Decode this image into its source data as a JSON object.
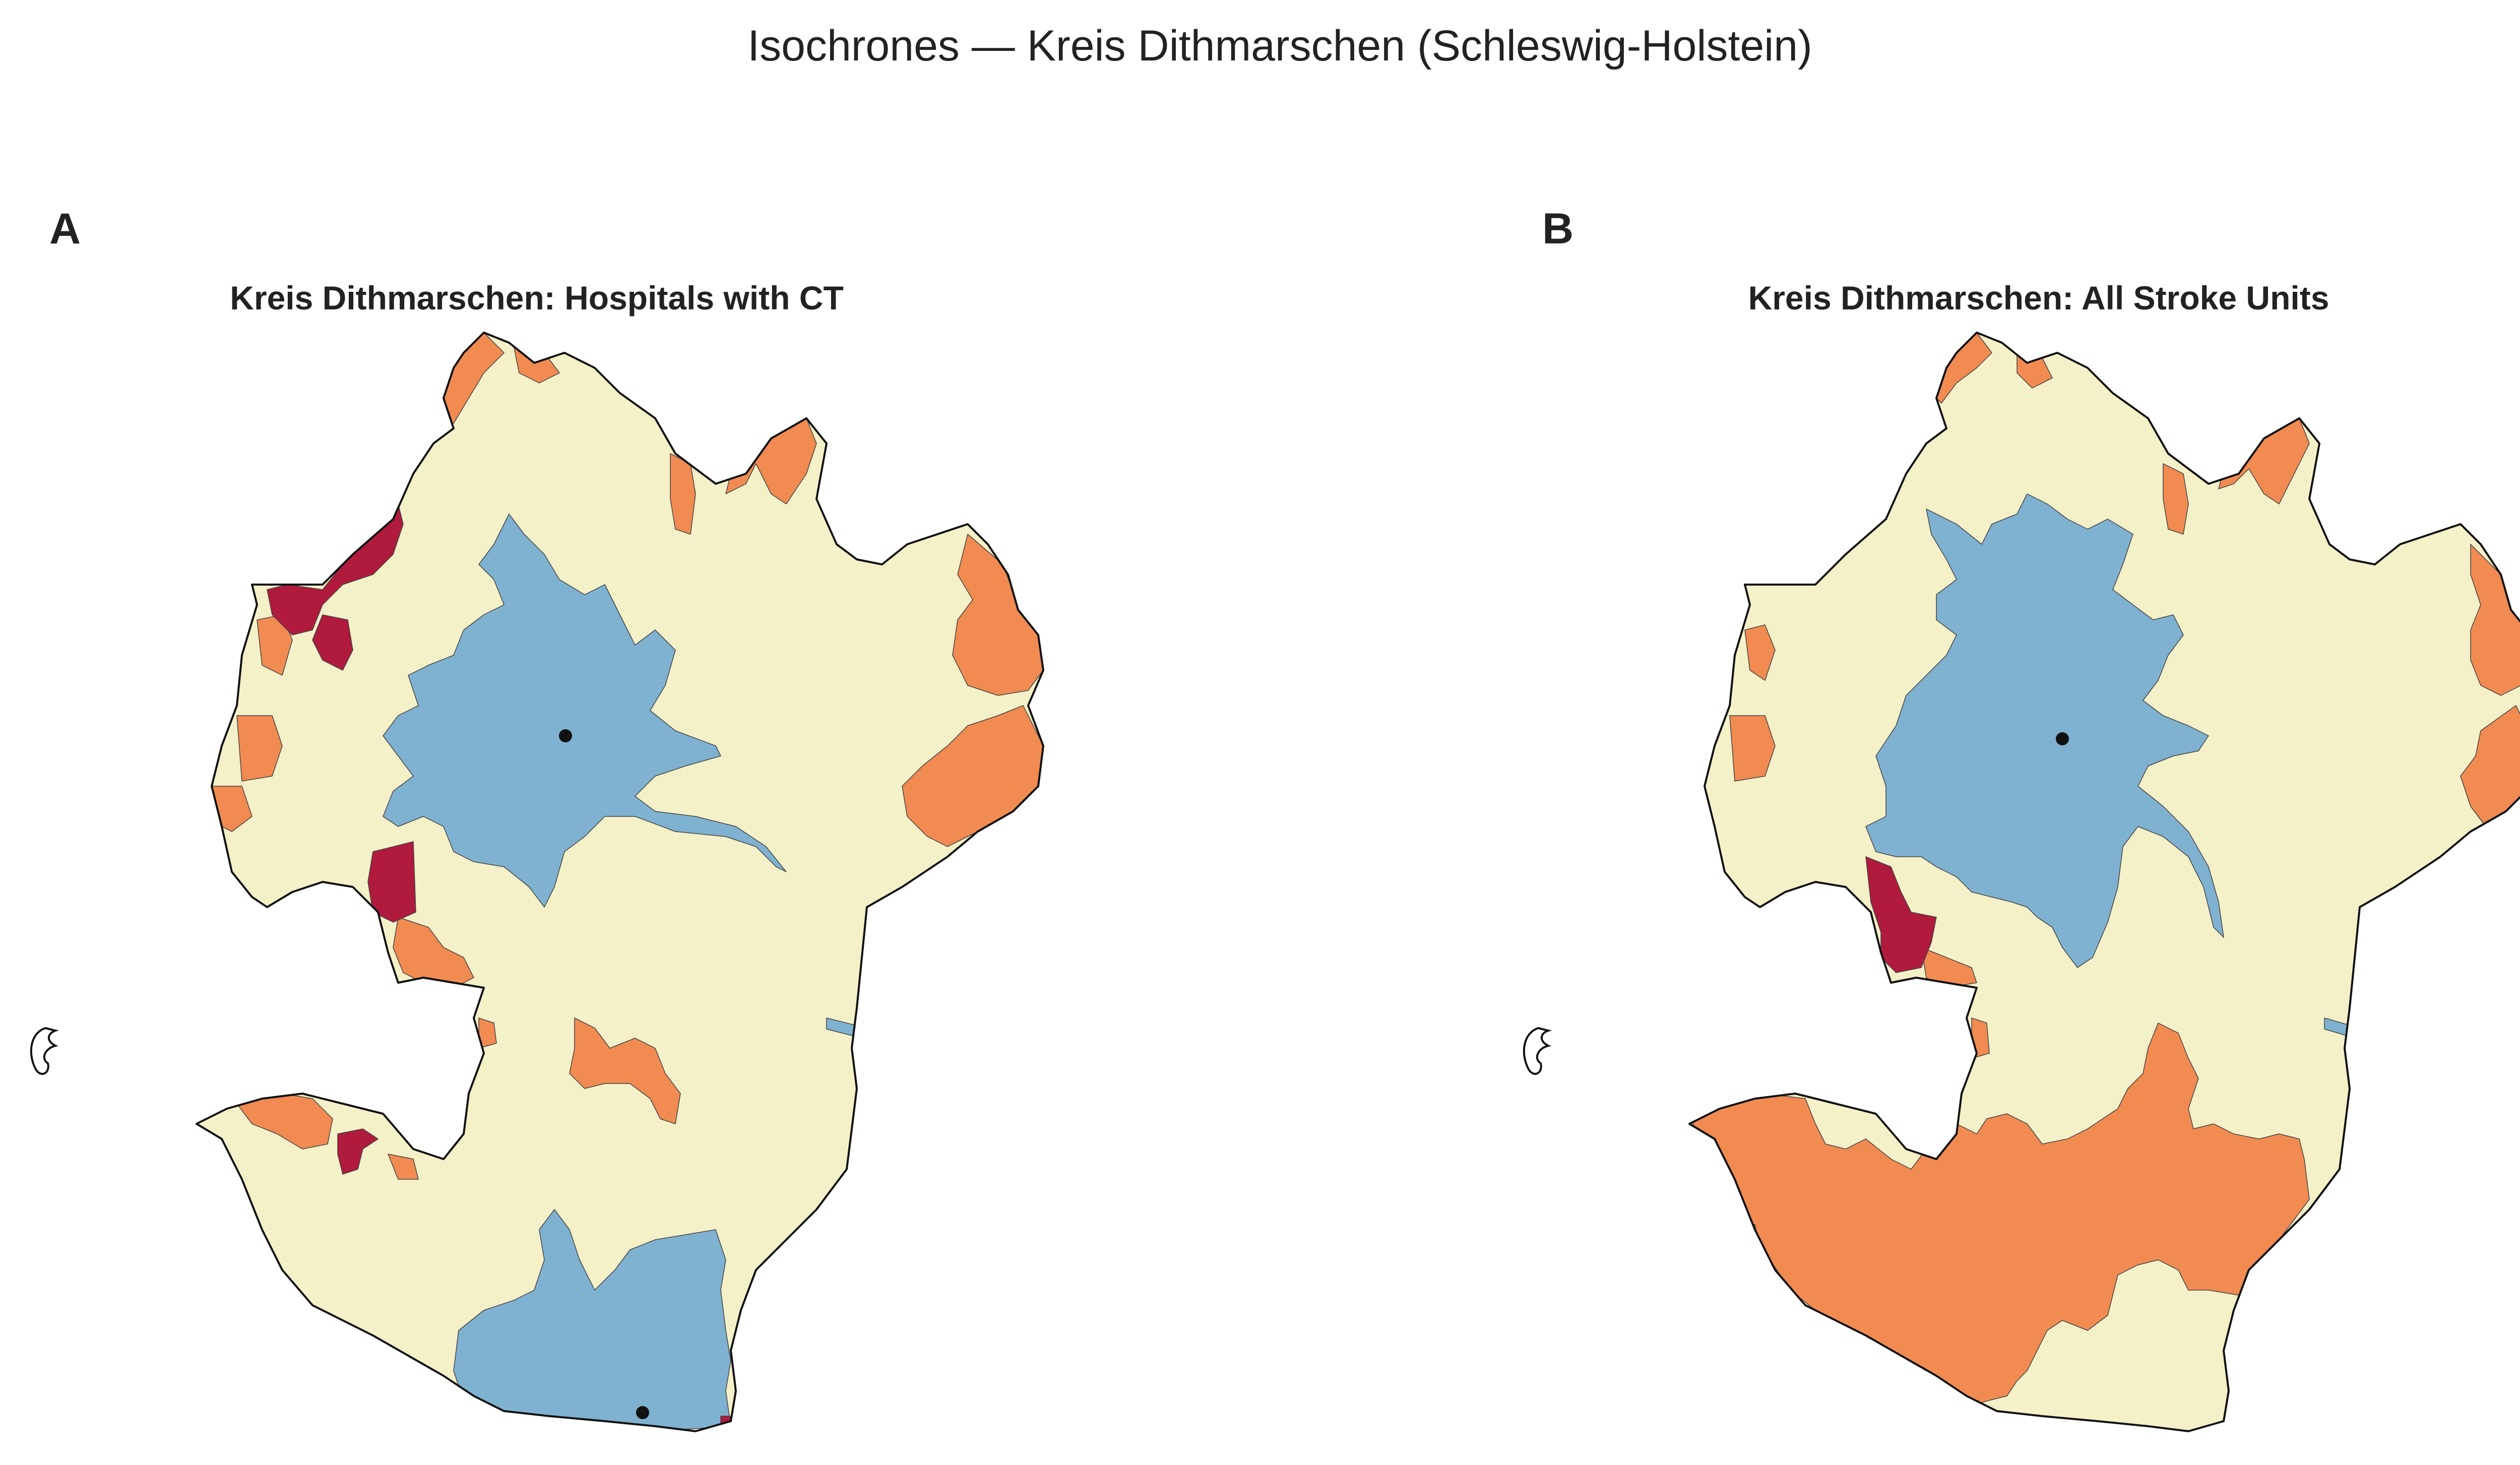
{
  "figure": {
    "title": "Isochrones — Kreis Dithmarschen (Schleswig-Holstein)"
  },
  "colors": {
    "zone_1": "#7fb1d1",
    "zone_2": "#f4f0c8",
    "zone_3": "#f18b52",
    "zone_4": "#b01a3c",
    "sea": "#ffffff",
    "boundary": "#111111",
    "marker": "#111111"
  },
  "panels": [
    {
      "letter": "A",
      "title": "Kreis Dithmarschen: Hospitals with CT",
      "marker_count": 2
    },
    {
      "letter": "B",
      "title": "Kreis Dithmarschen: All Stroke Units",
      "marker_count": 1
    }
  ]
}
